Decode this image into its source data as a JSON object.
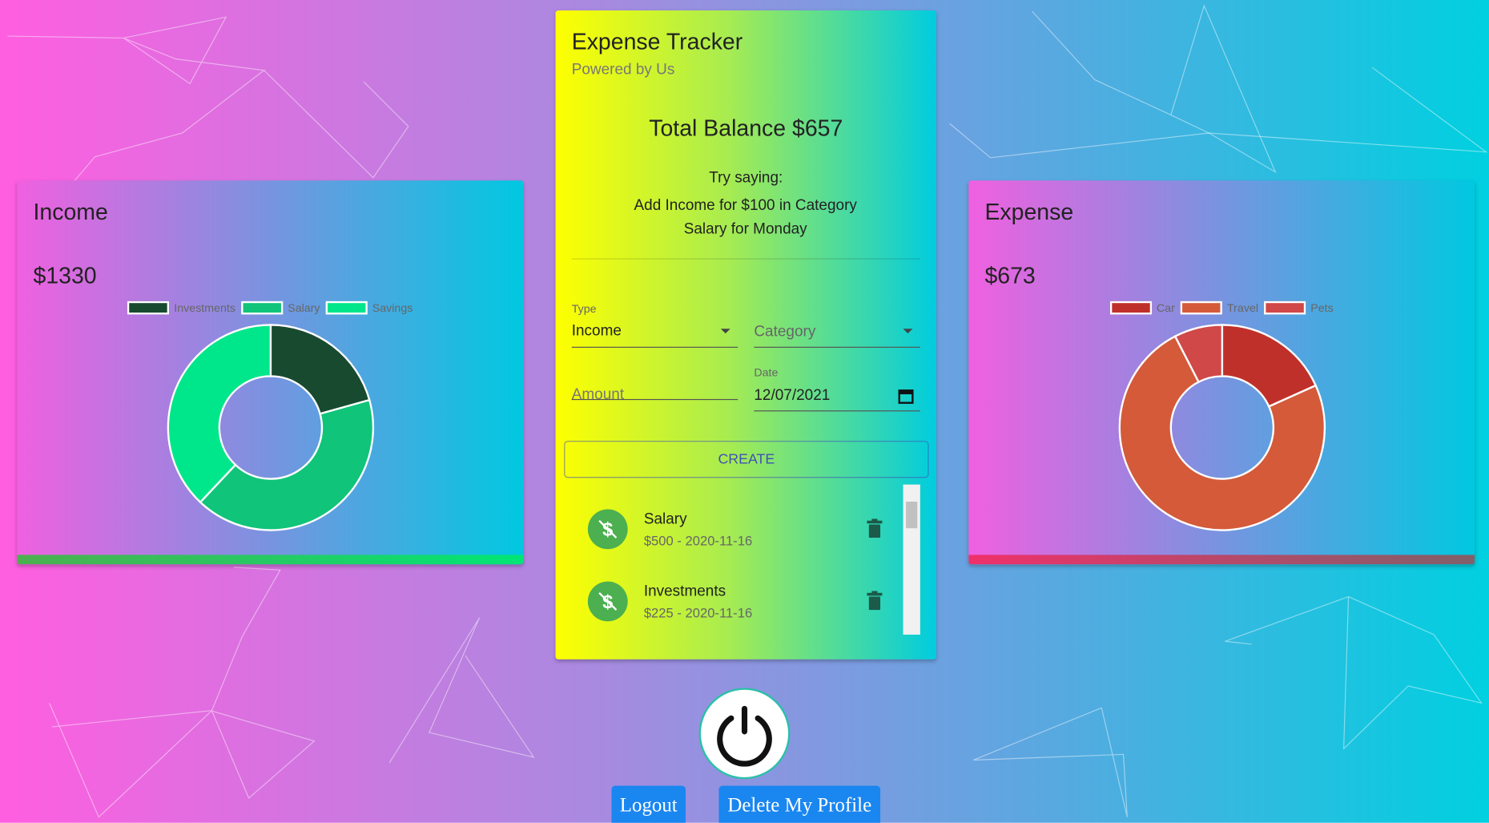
{
  "chart_data": [
    {
      "type": "pie",
      "title": "Income",
      "subtitle": "$1330",
      "categories": [
        "Investments",
        "Salary",
        "Savings"
      ],
      "values": [
        275,
        550,
        505
      ],
      "colors": [
        "#184a30",
        "#10c47a",
        "#00e68a"
      ]
    },
    {
      "type": "pie",
      "title": "Expense",
      "subtitle": "$673",
      "categories": [
        "Car",
        "Travel",
        "Pets"
      ],
      "values": [
        123,
        499,
        51
      ],
      "colors": [
        "#c0302a",
        "#d45a3a",
        "#d04848"
      ]
    }
  ],
  "app": {
    "title": "Expense Tracker",
    "subtitle": "Powered by Us",
    "balance": "Total Balance $657",
    "hint_title": "Try saying:",
    "hint": "Add Income for $100 in Category Salary for Monday",
    "form": {
      "type_label": "Type",
      "type_value": "Income",
      "category_placeholder": "Category",
      "amount_placeholder": "Amount",
      "date_label": "Date",
      "date_value": "12/07/2021",
      "button": "CREATE"
    },
    "transactions": [
      {
        "name": "Salary",
        "detail": "$500 - 2020-11-16"
      },
      {
        "name": "Investments",
        "detail": "$225 - 2020-11-16"
      }
    ],
    "buttons": {
      "logout": "Logout",
      "delete": "Delete My Profile"
    }
  }
}
